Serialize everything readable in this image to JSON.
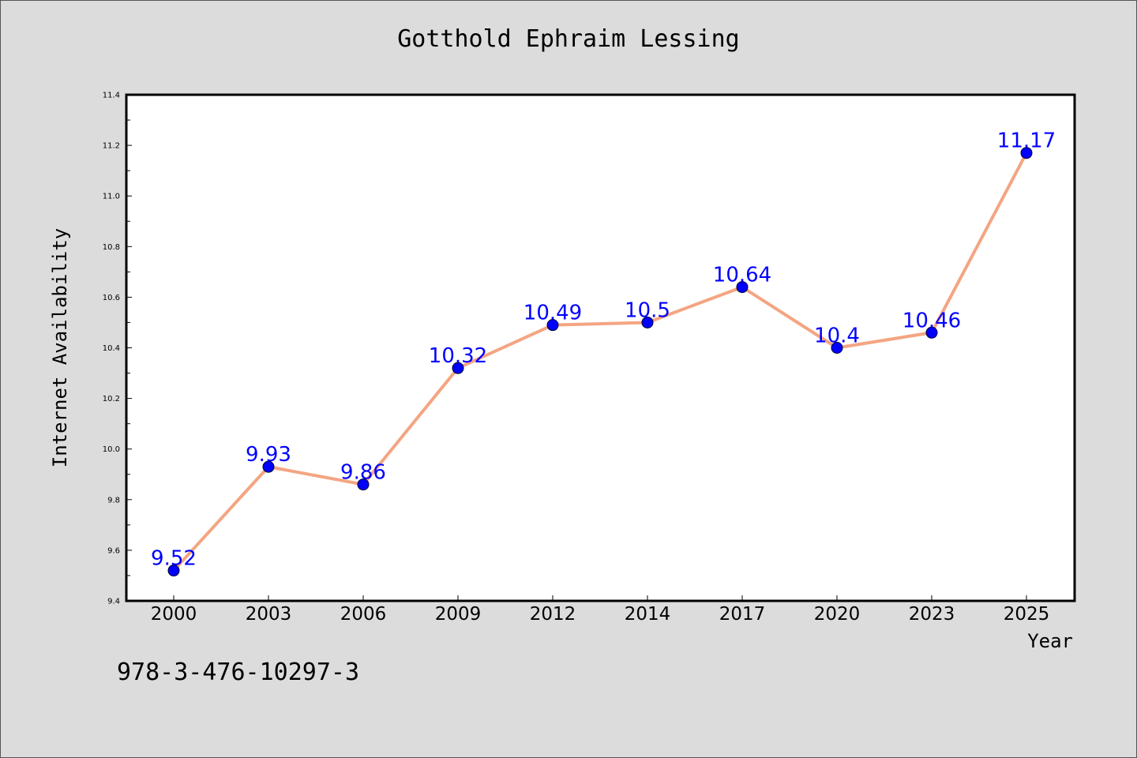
{
  "title": "Gotthold Ephraim Lessing",
  "footer_code": "978-3-476-10297-3",
  "colors": {
    "background": "#dcdcdc",
    "plot_background": "#ffffff",
    "line": "#f4a582",
    "marker": "#0000ff",
    "data_label": "#0000ff"
  },
  "chart_data": {
    "type": "line",
    "title": "Gotthold Ephraim Lessing",
    "xlabel": "Year",
    "ylabel": "Internet Availability",
    "categories": [
      "2000",
      "2003",
      "2006",
      "2009",
      "2012",
      "2014",
      "2017",
      "2020",
      "2023",
      "2025"
    ],
    "series": [
      {
        "values": [
          9.52,
          9.93,
          9.86,
          10.32,
          10.49,
          10.5,
          10.64,
          10.4,
          10.46,
          11.17
        ]
      }
    ],
    "data_labels": [
      "9.52",
      "9.93",
      "9.86",
      "10.32",
      "10.49",
      "10.5",
      "10.64",
      "10.4",
      "10.46",
      "11.17"
    ],
    "ylim": [
      9.4,
      11.4
    ],
    "yticks": [
      "9.4",
      "9.6",
      "9.8",
      "10.0",
      "10.2",
      "10.4",
      "10.6",
      "10.8",
      "11.0",
      "11.2",
      "11.4"
    ],
    "grid": false,
    "legend": "none"
  }
}
